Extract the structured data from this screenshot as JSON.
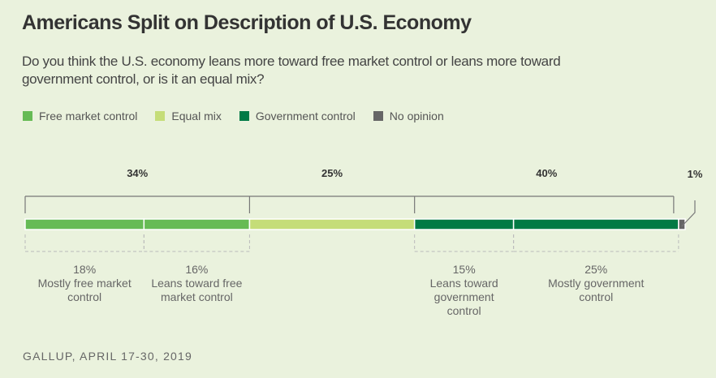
{
  "chart_data": {
    "type": "bar",
    "orientation": "horizontal-stacked",
    "title": "Americans Split on Description of U.S. Economy",
    "subtitle": "Do you think the U.S. economy leans more toward free market control or leans more toward government control, or is it an equal mix?",
    "legend": [
      {
        "label": "Free market control",
        "color": "#66bb55"
      },
      {
        "label": "Equal mix",
        "color": "#c5dd78"
      },
      {
        "label": "Government control",
        "color": "#007a45"
      },
      {
        "label": "No opinion",
        "color": "#666666"
      }
    ],
    "segments": [
      {
        "group": "Free market control",
        "label": "Mostly free market control",
        "value": 18,
        "value_label": "18%",
        "color": "#66bb55"
      },
      {
        "group": "Free market control",
        "label": "Leans toward free market control",
        "value": 16,
        "value_label": "16%",
        "color": "#66bb55"
      },
      {
        "group": "Equal mix",
        "label": "",
        "value": 25,
        "value_label": "",
        "color": "#c5dd78"
      },
      {
        "group": "Government control",
        "label": "Leans toward government control",
        "value": 15,
        "value_label": "15%",
        "color": "#007a45"
      },
      {
        "group": "Government control",
        "label": "Mostly government control",
        "value": 25,
        "value_label": "25%",
        "color": "#007a45"
      },
      {
        "group": "No opinion",
        "label": "",
        "value": 1,
        "value_label": "",
        "color": "#666666"
      }
    ],
    "sub_label_lines": [
      [
        "18%",
        "Mostly free market",
        "control"
      ],
      [
        "16%",
        "Leans toward free",
        "market control"
      ],
      [],
      [
        "15%",
        "Leans toward",
        "government",
        "control"
      ],
      [
        "25%",
        "Mostly government",
        "control"
      ],
      []
    ],
    "group_totals": [
      {
        "group": "Free market control",
        "value": 34,
        "label": "34%"
      },
      {
        "group": "Equal mix",
        "value": 25,
        "label": "25%"
      },
      {
        "group": "Government control",
        "value": 40,
        "label": "40%"
      },
      {
        "group": "No opinion",
        "value": 1,
        "label": "1%"
      }
    ],
    "xlim": [
      0,
      100
    ],
    "source": "GALLUP, APRIL 17-30, 2019"
  }
}
